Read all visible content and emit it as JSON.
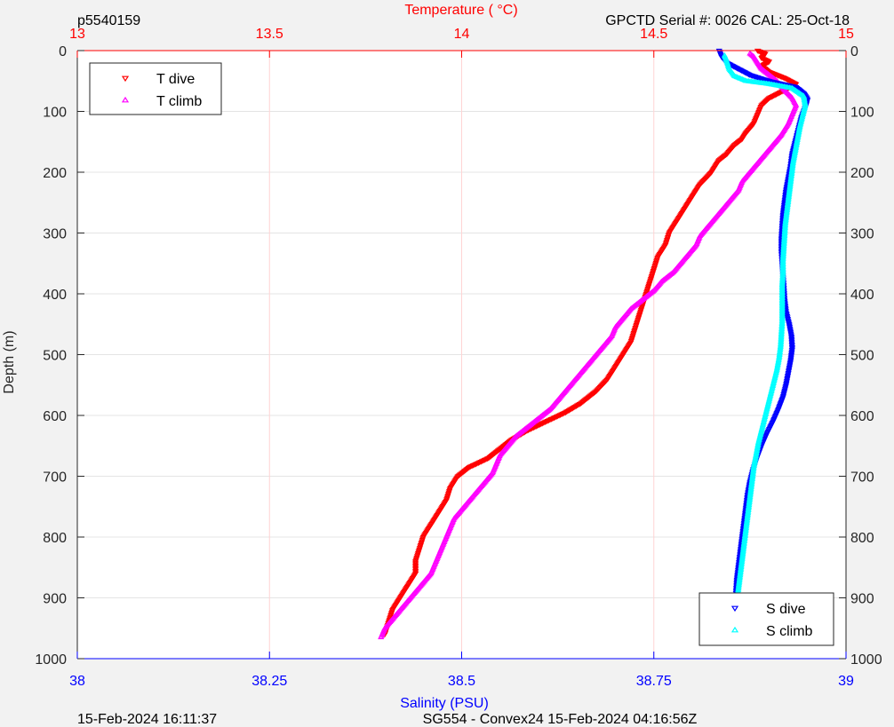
{
  "figure": {
    "top_left_id": "p5540159",
    "top_right_info": "GPCTD Serial #: 0026 CAL: 25-Oct-18",
    "bottom_left_time": "15-Feb-2024 16:11:37",
    "bottom_center_info": "SG554 - Convex24 15-Feb-2024 04:16:56Z"
  },
  "colors": {
    "background": "#f2f2f2",
    "plot_area": "#ffffff",
    "temperature_axis": "#ff0000",
    "salinity_axis": "#0000ff",
    "depth_axis": "#262626",
    "t_dive": "#ff0000",
    "t_climb": "#ff00ff",
    "s_dive": "#0000ff",
    "s_climb": "#00ffff"
  },
  "chart_data": {
    "type": "scatter",
    "y_axis": {
      "label": "Depth (m)",
      "range": [
        0,
        1000
      ],
      "reversed": true,
      "ticks": [
        0,
        100,
        200,
        300,
        400,
        500,
        600,
        700,
        800,
        900,
        1000
      ],
      "tick_labels": [
        "0",
        "100",
        "200",
        "300",
        "400",
        "500",
        "600",
        "700",
        "800",
        "900",
        "1000"
      ],
      "shown_on": "left and right"
    },
    "x_top_axis": {
      "label": "Temperature (    °C)",
      "range": [
        13,
        15
      ],
      "ticks": [
        13,
        13.5,
        14,
        14.5,
        15
      ],
      "tick_labels": [
        "13",
        "13.5",
        "14",
        "14.5",
        "15"
      ],
      "grid": true
    },
    "x_bottom_axis": {
      "label": "Salinity (PSU)",
      "range": [
        38,
        39
      ],
      "ticks": [
        38,
        38.25,
        38.5,
        38.75,
        39
      ],
      "tick_labels": [
        "38",
        "38.25",
        "38.5",
        "38.75",
        "39"
      ]
    },
    "grid": {
      "horizontal": true,
      "vertical_from": "temperature axis"
    },
    "legends": [
      {
        "placement": "top-left",
        "entries": [
          {
            "label": "T dive",
            "series": "t_dive",
            "marker": "triangle-down"
          },
          {
            "label": "T climb",
            "series": "t_climb",
            "marker": "triangle-up"
          }
        ]
      },
      {
        "placement": "bottom-right",
        "entries": [
          {
            "label": "S dive",
            "series": "s_dive",
            "marker": "triangle-down"
          },
          {
            "label": "S climb",
            "series": "s_climb",
            "marker": "triangle-up"
          }
        ]
      }
    ],
    "series": [
      {
        "key": "t_dive",
        "name": "T dive",
        "axis": "temperature",
        "marker": "triangle-down",
        "points": [
          [
            14.77,
            0
          ],
          [
            14.79,
            5
          ],
          [
            14.78,
            12
          ],
          [
            14.8,
            18
          ],
          [
            14.78,
            25
          ],
          [
            14.8,
            35
          ],
          [
            14.84,
            45
          ],
          [
            14.87,
            55
          ],
          [
            14.84,
            65
          ],
          [
            14.8,
            78
          ],
          [
            14.78,
            90
          ],
          [
            14.77,
            105
          ],
          [
            14.76,
            120
          ],
          [
            14.74,
            135
          ],
          [
            14.73,
            145
          ],
          [
            14.71,
            155
          ],
          [
            14.69,
            170
          ],
          [
            14.67,
            180
          ],
          [
            14.65,
            200
          ],
          [
            14.62,
            220
          ],
          [
            14.6,
            240
          ],
          [
            14.58,
            260
          ],
          [
            14.56,
            280
          ],
          [
            14.54,
            300
          ],
          [
            14.53,
            320
          ],
          [
            14.51,
            340
          ],
          [
            14.5,
            360
          ],
          [
            14.49,
            380
          ],
          [
            14.48,
            400
          ],
          [
            14.47,
            420
          ],
          [
            14.46,
            440
          ],
          [
            14.45,
            460
          ],
          [
            14.44,
            480
          ],
          [
            14.42,
            500
          ],
          [
            14.4,
            520
          ],
          [
            14.38,
            540
          ],
          [
            14.35,
            560
          ],
          [
            14.31,
            580
          ],
          [
            14.27,
            595
          ],
          [
            14.22,
            610
          ],
          [
            14.17,
            625
          ],
          [
            14.13,
            640
          ],
          [
            14.1,
            655
          ],
          [
            14.07,
            670
          ],
          [
            14.02,
            685
          ],
          [
            13.99,
            700
          ],
          [
            13.97,
            720
          ],
          [
            13.96,
            740
          ],
          [
            13.94,
            760
          ],
          [
            13.92,
            780
          ],
          [
            13.9,
            800
          ],
          [
            13.89,
            820
          ],
          [
            13.88,
            840
          ],
          [
            13.88,
            860
          ],
          [
            13.86,
            880
          ],
          [
            13.84,
            900
          ],
          [
            13.82,
            920
          ],
          [
            13.81,
            940
          ],
          [
            13.8,
            960
          ]
        ]
      },
      {
        "key": "t_climb",
        "name": "T climb",
        "axis": "temperature",
        "marker": "triangle-up",
        "points": [
          [
            13.79,
            965
          ],
          [
            13.8,
            950
          ],
          [
            13.82,
            935
          ],
          [
            13.84,
            920
          ],
          [
            13.86,
            905
          ],
          [
            13.88,
            890
          ],
          [
            13.9,
            875
          ],
          [
            13.92,
            860
          ],
          [
            13.93,
            845
          ],
          [
            13.94,
            830
          ],
          [
            13.95,
            815
          ],
          [
            13.96,
            800
          ],
          [
            13.97,
            785
          ],
          [
            13.98,
            770
          ],
          [
            14.0,
            755
          ],
          [
            14.02,
            740
          ],
          [
            14.04,
            725
          ],
          [
            14.06,
            710
          ],
          [
            14.08,
            695
          ],
          [
            14.09,
            680
          ],
          [
            14.1,
            665
          ],
          [
            14.12,
            650
          ],
          [
            14.14,
            635
          ],
          [
            14.17,
            620
          ],
          [
            14.2,
            605
          ],
          [
            14.23,
            590
          ],
          [
            14.25,
            575
          ],
          [
            14.27,
            560
          ],
          [
            14.29,
            545
          ],
          [
            14.31,
            530
          ],
          [
            14.33,
            515
          ],
          [
            14.35,
            500
          ],
          [
            14.37,
            485
          ],
          [
            14.39,
            470
          ],
          [
            14.4,
            455
          ],
          [
            14.42,
            440
          ],
          [
            14.44,
            425
          ],
          [
            14.47,
            410
          ],
          [
            14.5,
            395
          ],
          [
            14.52,
            380
          ],
          [
            14.55,
            365
          ],
          [
            14.57,
            350
          ],
          [
            14.59,
            335
          ],
          [
            14.61,
            320
          ],
          [
            14.62,
            305
          ],
          [
            14.64,
            290
          ],
          [
            14.66,
            275
          ],
          [
            14.68,
            260
          ],
          [
            14.7,
            245
          ],
          [
            14.72,
            230
          ],
          [
            14.73,
            215
          ],
          [
            14.75,
            200
          ],
          [
            14.77,
            185
          ],
          [
            14.79,
            170
          ],
          [
            14.81,
            155
          ],
          [
            14.83,
            140
          ],
          [
            14.85,
            120
          ],
          [
            14.86,
            105
          ],
          [
            14.87,
            90
          ],
          [
            14.86,
            78
          ],
          [
            14.84,
            65
          ],
          [
            14.82,
            50
          ],
          [
            14.8,
            40
          ],
          [
            14.78,
            30
          ],
          [
            14.77,
            20
          ],
          [
            14.76,
            10
          ],
          [
            14.75,
            5
          ]
        ]
      },
      {
        "key": "s_dive",
        "name": "S dive",
        "axis": "salinity",
        "marker": "triangle-down",
        "points": [
          [
            38.835,
            0
          ],
          [
            38.838,
            10
          ],
          [
            38.845,
            20
          ],
          [
            38.86,
            30
          ],
          [
            38.875,
            40
          ],
          [
            38.9,
            50
          ],
          [
            38.935,
            60
          ],
          [
            38.945,
            70
          ],
          [
            38.95,
            80
          ],
          [
            38.948,
            90
          ],
          [
            38.942,
            110
          ],
          [
            38.938,
            130
          ],
          [
            38.934,
            150
          ],
          [
            38.93,
            170
          ],
          [
            38.928,
            190
          ],
          [
            38.925,
            210
          ],
          [
            38.922,
            230
          ],
          [
            38.92,
            250
          ],
          [
            38.918,
            270
          ],
          [
            38.917,
            290
          ],
          [
            38.916,
            310
          ],
          [
            38.916,
            330
          ],
          [
            38.917,
            350
          ],
          [
            38.918,
            370
          ],
          [
            38.919,
            390
          ],
          [
            38.92,
            410
          ],
          [
            38.922,
            430
          ],
          [
            38.926,
            450
          ],
          [
            38.929,
            470
          ],
          [
            38.93,
            490
          ],
          [
            38.928,
            510
          ],
          [
            38.925,
            530
          ],
          [
            38.922,
            550
          ],
          [
            38.918,
            570
          ],
          [
            38.912,
            590
          ],
          [
            38.905,
            610
          ],
          [
            38.897,
            630
          ],
          [
            38.89,
            650
          ],
          [
            38.884,
            670
          ],
          [
            38.879,
            690
          ],
          [
            38.875,
            710
          ],
          [
            38.872,
            730
          ],
          [
            38.87,
            750
          ],
          [
            38.868,
            770
          ],
          [
            38.866,
            790
          ],
          [
            38.864,
            810
          ],
          [
            38.862,
            830
          ],
          [
            38.86,
            850
          ],
          [
            38.858,
            870
          ],
          [
            38.857,
            890
          ],
          [
            38.856,
            910
          ],
          [
            38.855,
            930
          ],
          [
            38.854,
            950
          ],
          [
            38.854,
            965
          ]
        ]
      },
      {
        "key": "s_climb",
        "name": "S climb",
        "axis": "salinity",
        "marker": "triangle-up",
        "points": [
          [
            38.855,
            965
          ],
          [
            38.856,
            945
          ],
          [
            38.857,
            925
          ],
          [
            38.858,
            905
          ],
          [
            38.86,
            885
          ],
          [
            38.862,
            865
          ],
          [
            38.864,
            845
          ],
          [
            38.866,
            825
          ],
          [
            38.868,
            805
          ],
          [
            38.87,
            785
          ],
          [
            38.872,
            765
          ],
          [
            38.874,
            745
          ],
          [
            38.876,
            725
          ],
          [
            38.878,
            705
          ],
          [
            38.88,
            685
          ],
          [
            38.883,
            665
          ],
          [
            38.886,
            645
          ],
          [
            38.89,
            625
          ],
          [
            38.894,
            605
          ],
          [
            38.898,
            585
          ],
          [
            38.902,
            565
          ],
          [
            38.906,
            545
          ],
          [
            38.91,
            525
          ],
          [
            38.913,
            505
          ],
          [
            38.915,
            485
          ],
          [
            38.916,
            465
          ],
          [
            38.917,
            445
          ],
          [
            38.917,
            425
          ],
          [
            38.917,
            405
          ],
          [
            38.917,
            385
          ],
          [
            38.918,
            365
          ],
          [
            38.918,
            345
          ],
          [
            38.919,
            325
          ],
          [
            38.92,
            305
          ],
          [
            38.921,
            285
          ],
          [
            38.923,
            265
          ],
          [
            38.925,
            245
          ],
          [
            38.927,
            225
          ],
          [
            38.929,
            205
          ],
          [
            38.931,
            185
          ],
          [
            38.934,
            165
          ],
          [
            38.937,
            145
          ],
          [
            38.94,
            125
          ],
          [
            38.944,
            105
          ],
          [
            38.947,
            90
          ],
          [
            38.945,
            75
          ],
          [
            38.93,
            62
          ],
          [
            38.9,
            55
          ],
          [
            38.87,
            50
          ],
          [
            38.855,
            42
          ],
          [
            38.848,
            30
          ],
          [
            38.845,
            18
          ],
          [
            38.842,
            8
          ]
        ]
      }
    ]
  }
}
